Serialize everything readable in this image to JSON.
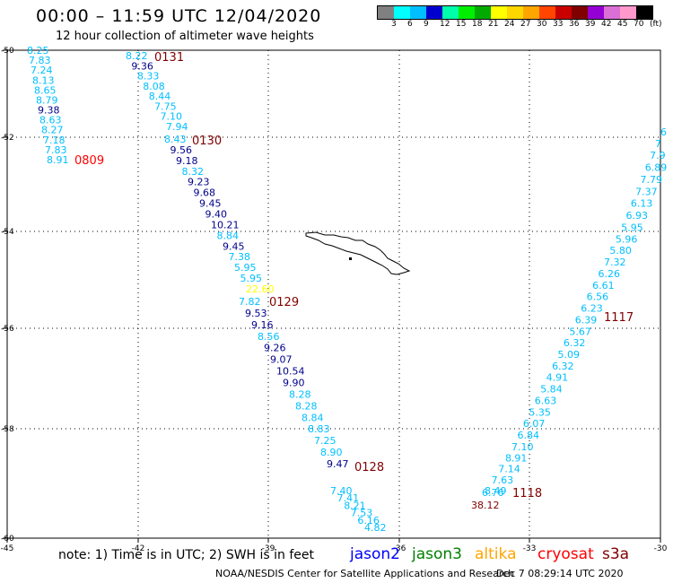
{
  "header": {
    "title": "00:00 – 11:59 UTC 12/04/2020",
    "subtitle": "12 hour collection of altimeter wave heights"
  },
  "legend": {
    "colors": [
      "#808080",
      "#00ffff",
      "#00bfff",
      "#0000cd",
      "#00ffaa",
      "#00ee00",
      "#00aa00",
      "#ffff00",
      "#ffd700",
      "#ffa500",
      "#ff4500",
      "#c80000",
      "#800000",
      "#9400d3",
      "#da70d6",
      "#ff99cc",
      "#000000"
    ],
    "labels": [
      "3",
      "6",
      "9",
      "12",
      "15",
      "18",
      "21",
      "24",
      "27",
      "30",
      "33",
      "36",
      "39",
      "42",
      "45",
      "70",
      "(ft)"
    ]
  },
  "map": {
    "lon_ticks": [
      "-45",
      "-42",
      "-39",
      "-36",
      "-33",
      "-30"
    ],
    "lat_ticks": [
      "-50",
      "-52",
      "-54",
      "-56",
      "-58",
      "-60"
    ],
    "colors": {
      "cyan": "#00bfff",
      "navy": "#00008b",
      "yellow": "#ffff00",
      "maroon": "#800000",
      "red": "#ff0000"
    }
  },
  "tracks": [
    {
      "label": "0809",
      "label_color": "#ff0000",
      "values": [
        {
          "v": "8.25",
          "c": "cyan"
        },
        {
          "v": "7.83",
          "c": "cyan"
        },
        {
          "v": "7.24",
          "c": "cyan"
        },
        {
          "v": "8.13",
          "c": "cyan"
        },
        {
          "v": "8.65",
          "c": "cyan"
        },
        {
          "v": "8.79",
          "c": "cyan"
        },
        {
          "v": "9.38",
          "c": "navy"
        },
        {
          "v": "8.63",
          "c": "cyan"
        },
        {
          "v": "8.27",
          "c": "cyan"
        },
        {
          "v": "7.18",
          "c": "cyan"
        },
        {
          "v": "7.83",
          "c": "cyan"
        },
        {
          "v": "8.91",
          "c": "cyan"
        }
      ]
    },
    {
      "label": "0131",
      "label_color": "#800000",
      "values": [
        {
          "v": "8.22",
          "c": "cyan"
        },
        {
          "v": "9.36",
          "c": "navy"
        },
        {
          "v": "8.33",
          "c": "cyan"
        },
        {
          "v": "8.08",
          "c": "cyan"
        },
        {
          "v": "8.44",
          "c": "cyan"
        },
        {
          "v": "7.75",
          "c": "cyan"
        },
        {
          "v": "7.10",
          "c": "cyan"
        },
        {
          "v": "7.94",
          "c": "cyan"
        }
      ]
    },
    {
      "label": "0130",
      "label_color": "#800000",
      "values": [
        {
          "v": "8.43",
          "c": "cyan"
        },
        {
          "v": "9.56",
          "c": "navy"
        },
        {
          "v": "9.18",
          "c": "navy"
        },
        {
          "v": "8.32",
          "c": "cyan"
        },
        {
          "v": "9.23",
          "c": "navy"
        },
        {
          "v": "9.68",
          "c": "navy"
        },
        {
          "v": "9.45",
          "c": "navy"
        },
        {
          "v": "9.40",
          "c": "navy"
        },
        {
          "v": "10.21",
          "c": "navy"
        },
        {
          "v": "8.84",
          "c": "cyan"
        },
        {
          "v": "9.45",
          "c": "navy"
        },
        {
          "v": "7.38",
          "c": "cyan"
        },
        {
          "v": "5.95",
          "c": "cyan"
        },
        {
          "v": "5.95",
          "c": "cyan"
        },
        {
          "v": "22.60",
          "c": "yellow"
        }
      ]
    },
    {
      "label": "0129",
      "label_color": "#800000",
      "values": [
        {
          "v": "7.82",
          "c": "cyan"
        },
        {
          "v": "9.53",
          "c": "navy"
        },
        {
          "v": "9.16",
          "c": "navy"
        },
        {
          "v": "8.56",
          "c": "cyan"
        },
        {
          "v": "9.26",
          "c": "navy"
        },
        {
          "v": "9.07",
          "c": "navy"
        },
        {
          "v": "10.54",
          "c": "navy"
        },
        {
          "v": "9.90",
          "c": "navy"
        },
        {
          "v": "8.28",
          "c": "cyan"
        },
        {
          "v": "8.28",
          "c": "cyan"
        },
        {
          "v": "8.84",
          "c": "cyan"
        },
        {
          "v": "8.83",
          "c": "cyan"
        },
        {
          "v": "7.25",
          "c": "cyan"
        },
        {
          "v": "8.90",
          "c": "cyan"
        },
        {
          "v": "9.47",
          "c": "navy"
        }
      ]
    },
    {
      "label": "0128",
      "label_color": "#800000",
      "values": [
        {
          "v": "7.40",
          "c": "cyan"
        },
        {
          "v": "7.41",
          "c": "cyan"
        },
        {
          "v": "8.21",
          "c": "cyan"
        },
        {
          "v": "7.53",
          "c": "cyan"
        },
        {
          "v": "6.16",
          "c": "cyan"
        },
        {
          "v": "4.82",
          "c": "cyan"
        }
      ]
    },
    {
      "label": "1117",
      "label_color": "#800000",
      "values": [
        {
          "v": "6",
          "c": "cyan"
        },
        {
          "v": "7",
          "c": "cyan"
        },
        {
          "v": "7.9",
          "c": "cyan"
        },
        {
          "v": "6.89",
          "c": "cyan"
        },
        {
          "v": "7.79",
          "c": "cyan"
        },
        {
          "v": "7.37",
          "c": "cyan"
        },
        {
          "v": "6.13",
          "c": "cyan"
        },
        {
          "v": "6.93",
          "c": "cyan"
        },
        {
          "v": "5.95",
          "c": "cyan"
        },
        {
          "v": "5.96",
          "c": "cyan"
        },
        {
          "v": "5.80",
          "c": "cyan"
        },
        {
          "v": "7.32",
          "c": "cyan"
        },
        {
          "v": "6.26",
          "c": "cyan"
        },
        {
          "v": "6.61",
          "c": "cyan"
        },
        {
          "v": "6.56",
          "c": "cyan"
        },
        {
          "v": "6.23",
          "c": "cyan"
        },
        {
          "v": "6.39",
          "c": "cyan"
        },
        {
          "v": "5.67",
          "c": "cyan"
        },
        {
          "v": "6.32",
          "c": "cyan"
        },
        {
          "v": "5.09",
          "c": "cyan"
        },
        {
          "v": "6.32",
          "c": "cyan"
        },
        {
          "v": "4.91",
          "c": "cyan"
        },
        {
          "v": "5.84",
          "c": "cyan"
        },
        {
          "v": "6.63",
          "c": "cyan"
        },
        {
          "v": "5.35",
          "c": "cyan"
        },
        {
          "v": "6.07",
          "c": "cyan"
        },
        {
          "v": "6.84",
          "c": "cyan"
        },
        {
          "v": "7.10",
          "c": "cyan"
        },
        {
          "v": "8.91",
          "c": "cyan"
        },
        {
          "v": "7.14",
          "c": "cyan"
        },
        {
          "v": "7.63",
          "c": "cyan"
        },
        {
          "v": "8.49",
          "c": "cyan"
        }
      ]
    },
    {
      "label": "1118",
      "label_color": "#800000",
      "values": [
        {
          "v": "6.76",
          "c": "cyan"
        },
        {
          "v": "38.12",
          "c": "maroon"
        }
      ]
    }
  ],
  "footer": {
    "note": "note: 1) Time is in UTC; 2) SWH is in feet",
    "satellites": [
      {
        "name": "jason2",
        "color": "#0000ff"
      },
      {
        "name": "jason3",
        "color": "#008000"
      },
      {
        "name": "altika",
        "color": "#ffa500"
      },
      {
        "name": "cryosat",
        "color": "#ff0000"
      },
      {
        "name": "s3a",
        "color": "#800000"
      }
    ],
    "credit": "NOAA/NESDIS Center for Satellite Applications and Research",
    "timestamp": "Dec  7 08:29:14 UTC 2020"
  }
}
